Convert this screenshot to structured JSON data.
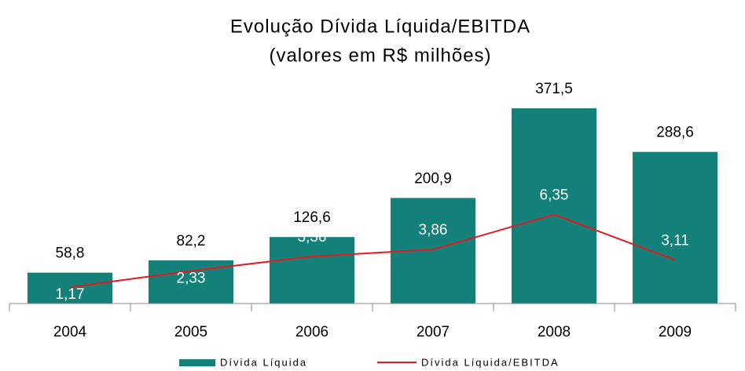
{
  "chart_data": {
    "type": "bar",
    "title": "Evolução Dívida Líquida/EBITDA",
    "subtitle": "(valores em R$ milhões)",
    "categories": [
      "2004",
      "2005",
      "2006",
      "2007",
      "2008",
      "2009"
    ],
    "ylim": [
      0,
      400
    ],
    "y2lim": [
      0,
      15
    ],
    "series": [
      {
        "name": "Dívida Líquida",
        "type": "bar",
        "color": "#14807a",
        "values": [
          58.8,
          82.2,
          126.6,
          200.9,
          371.5,
          288.6
        ],
        "value_labels": [
          "58,8",
          "82,2",
          "126,6",
          "200,9",
          "371,5",
          "288,6"
        ]
      },
      {
        "name": "Dívida Líquida/EBITDA",
        "type": "line",
        "axis": "y2",
        "color": "#e3191f",
        "values": [
          1.17,
          2.33,
          3.36,
          3.86,
          6.35,
          3.11
        ],
        "value_labels": [
          "1,17",
          "2,33",
          "3,36",
          "3,86",
          "6,35",
          "3,11"
        ]
      }
    ]
  }
}
